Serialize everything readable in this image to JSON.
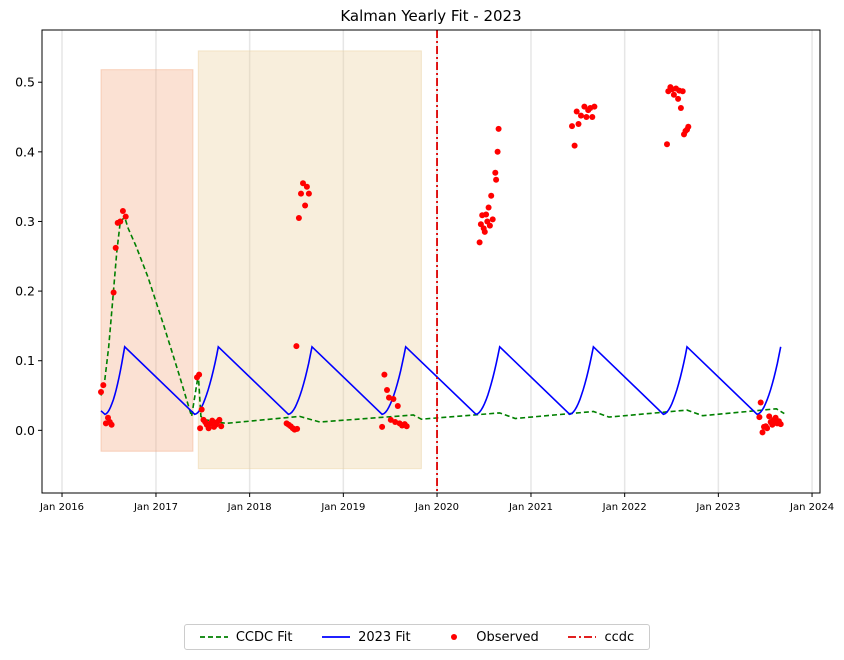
{
  "chart_data": {
    "type": "line",
    "title": "Kalman Yearly Fit - 2023",
    "xlabel": "",
    "ylabel": "",
    "xlim": [
      "2015-10-15",
      "2024-02-01"
    ],
    "ylim": [
      -0.09,
      0.575
    ],
    "x_ticks": [
      {
        "date": "2016-01-01",
        "label": "Jan 2016"
      },
      {
        "date": "2017-01-01",
        "label": "Jan 2017"
      },
      {
        "date": "2018-01-01",
        "label": "Jan 2018"
      },
      {
        "date": "2019-01-01",
        "label": "Jan 2019"
      },
      {
        "date": "2020-01-01",
        "label": "Jan 2020"
      },
      {
        "date": "2021-01-01",
        "label": "Jan 2021"
      },
      {
        "date": "2022-01-01",
        "label": "Jan 2022"
      },
      {
        "date": "2023-01-01",
        "label": "Jan 2023"
      },
      {
        "date": "2024-01-01",
        "label": "Jan 2024"
      }
    ],
    "y_ticks": [
      0.0,
      0.1,
      0.2,
      0.3,
      0.4,
      0.5
    ],
    "grid": "vertical",
    "legend_placement": "bottom-center",
    "shaded_regions": [
      {
        "start": "2016-06-01",
        "end": "2017-05-25",
        "ymin": -0.03,
        "ymax": 0.518,
        "color": "#f4b08c"
      },
      {
        "start": "2017-06-15",
        "end": "2019-11-01",
        "ymin": -0.055,
        "ymax": 0.545,
        "color": "#ecd3a4"
      }
    ],
    "vline": {
      "date": "2020-01-01",
      "name": "ccdc",
      "color": "#dd0000"
    },
    "series": [
      {
        "name": "CCDC Fit",
        "style": "dashed",
        "color": "#008000",
        "points": [
          [
            "2016-06-01",
            0.05
          ],
          [
            "2016-06-15",
            0.07
          ],
          [
            "2016-07-01",
            0.12
          ],
          [
            "2016-07-15",
            0.18
          ],
          [
            "2016-08-01",
            0.255
          ],
          [
            "2016-08-15",
            0.3
          ],
          [
            "2016-09-01",
            0.306
          ],
          [
            "2016-09-15",
            0.29
          ],
          [
            "2016-10-15",
            0.265
          ],
          [
            "2016-12-01",
            0.22
          ],
          [
            "2017-02-01",
            0.15
          ],
          [
            "2017-04-01",
            0.08
          ],
          [
            "2017-05-20",
            0.02
          ],
          [
            "2017-06-15",
            0.08
          ],
          [
            "2017-06-25",
            0.02
          ],
          [
            "2017-07-15",
            0.015
          ],
          [
            "2017-10-01",
            0.01
          ],
          [
            "2018-07-15",
            0.02
          ],
          [
            "2018-10-01",
            0.012
          ],
          [
            "2019-10-01",
            0.022
          ],
          [
            "2019-11-01",
            0.016
          ],
          [
            "2020-09-01",
            0.025
          ],
          [
            "2020-11-01",
            0.017
          ],
          [
            "2021-09-01",
            0.027
          ],
          [
            "2021-11-01",
            0.019
          ],
          [
            "2022-09-01",
            0.029
          ],
          [
            "2022-11-01",
            0.021
          ],
          [
            "2023-08-15",
            0.031
          ],
          [
            "2023-09-15",
            0.024
          ]
        ]
      },
      {
        "name": "2023 Fit",
        "style": "solid",
        "color": "#0000ff",
        "cycles": [
          {
            "start": "2016-06-01",
            "mid": "2016-09-01",
            "rise_from": 0.023,
            "peak": 0.12,
            "descend_to": 0.023
          },
          {
            "start": "2017-06-01",
            "mid": "2017-09-01",
            "rise_from": 0.023,
            "peak": 0.12,
            "descend_to": 0.023
          },
          {
            "start": "2018-06-01",
            "mid": "2018-09-01",
            "rise_from": 0.023,
            "peak": 0.12,
            "descend_to": 0.023
          },
          {
            "start": "2019-06-01",
            "mid": "2019-09-01",
            "rise_from": 0.023,
            "peak": 0.12,
            "descend_to": 0.023
          },
          {
            "start": "2020-06-01",
            "mid": "2020-09-01",
            "rise_from": 0.023,
            "peak": 0.12,
            "descend_to": 0.023
          },
          {
            "start": "2021-06-01",
            "mid": "2021-09-01",
            "rise_from": 0.023,
            "peak": 0.12,
            "descend_to": 0.023
          },
          {
            "start": "2022-06-01",
            "mid": "2022-09-01",
            "rise_from": 0.023,
            "peak": 0.12,
            "descend_to": 0.023
          },
          {
            "start": "2023-06-01",
            "mid": "2023-09-01",
            "rise_from": 0.023,
            "peak": 0.12,
            "descend_to": null
          }
        ],
        "start_value": 0.028
      },
      {
        "name": "Observed",
        "style": "scatter",
        "color": "#ff0000",
        "points": [
          [
            "2016-06-01",
            0.055
          ],
          [
            "2016-06-10",
            0.065
          ],
          [
            "2016-06-20",
            0.01
          ],
          [
            "2016-06-28",
            0.018
          ],
          [
            "2016-07-05",
            0.012
          ],
          [
            "2016-07-12",
            0.008
          ],
          [
            "2016-07-20",
            0.198
          ],
          [
            "2016-07-28",
            0.262
          ],
          [
            "2016-08-05",
            0.298
          ],
          [
            "2016-08-15",
            0.3
          ],
          [
            "2016-08-25",
            0.315
          ],
          [
            "2016-09-05",
            0.307
          ],
          [
            "2017-06-10",
            0.076
          ],
          [
            "2017-06-18",
            0.08
          ],
          [
            "2017-06-22",
            0.003
          ],
          [
            "2017-06-28",
            0.03
          ],
          [
            "2017-07-05",
            0.015
          ],
          [
            "2017-07-12",
            0.012
          ],
          [
            "2017-07-18",
            0.008
          ],
          [
            "2017-07-25",
            0.003
          ],
          [
            "2017-08-01",
            0.01
          ],
          [
            "2017-08-08",
            0.014
          ],
          [
            "2017-08-15",
            0.005
          ],
          [
            "2017-08-22",
            0.008
          ],
          [
            "2017-08-28",
            0.012
          ],
          [
            "2017-09-05",
            0.015
          ],
          [
            "2017-09-12",
            0.006
          ],
          [
            "2018-05-25",
            0.01
          ],
          [
            "2018-06-02",
            0.008
          ],
          [
            "2018-06-10",
            0.006
          ],
          [
            "2018-06-18",
            0.003
          ],
          [
            "2018-06-25",
            0.001
          ],
          [
            "2018-07-02",
            0.121
          ],
          [
            "2018-07-05",
            0.002
          ],
          [
            "2018-07-12",
            0.305
          ],
          [
            "2018-07-20",
            0.34
          ],
          [
            "2018-07-28",
            0.355
          ],
          [
            "2018-08-05",
            0.323
          ],
          [
            "2018-08-12",
            0.35
          ],
          [
            "2018-08-20",
            0.34
          ],
          [
            "2019-06-01",
            0.005
          ],
          [
            "2019-06-10",
            0.08
          ],
          [
            "2019-06-20",
            0.058
          ],
          [
            "2019-06-28",
            0.047
          ],
          [
            "2019-07-05",
            0.015
          ],
          [
            "2019-07-15",
            0.045
          ],
          [
            "2019-07-22",
            0.012
          ],
          [
            "2019-08-01",
            0.035
          ],
          [
            "2019-08-08",
            0.01
          ],
          [
            "2019-08-18",
            0.007
          ],
          [
            "2019-08-28",
            0.009
          ],
          [
            "2019-09-05",
            0.006
          ],
          [
            "2020-06-15",
            0.27
          ],
          [
            "2020-06-20",
            0.296
          ],
          [
            "2020-06-25",
            0.309
          ],
          [
            "2020-07-01",
            0.29
          ],
          [
            "2020-07-05",
            0.285
          ],
          [
            "2020-07-10",
            0.31
          ],
          [
            "2020-07-15",
            0.3
          ],
          [
            "2020-07-20",
            0.32
          ],
          [
            "2020-07-25",
            0.294
          ],
          [
            "2020-07-30",
            0.337
          ],
          [
            "2020-08-05",
            0.303
          ],
          [
            "2020-08-15",
            0.37
          ],
          [
            "2020-08-18",
            0.36
          ],
          [
            "2020-08-24",
            0.4
          ],
          [
            "2020-08-28",
            0.433
          ],
          [
            "2021-06-10",
            0.437
          ],
          [
            "2021-06-20",
            0.409
          ],
          [
            "2021-06-28",
            0.458
          ],
          [
            "2021-07-05",
            0.44
          ],
          [
            "2021-07-15",
            0.452
          ],
          [
            "2021-07-28",
            0.465
          ],
          [
            "2021-08-05",
            0.45
          ],
          [
            "2021-08-12",
            0.46
          ],
          [
            "2021-08-20",
            0.463
          ],
          [
            "2021-08-28",
            0.45
          ],
          [
            "2021-09-05",
            0.465
          ],
          [
            "2022-06-15",
            0.411
          ],
          [
            "2022-06-20",
            0.487
          ],
          [
            "2022-06-28",
            0.493
          ],
          [
            "2022-07-05",
            0.49
          ],
          [
            "2022-07-12",
            0.482
          ],
          [
            "2022-07-20",
            0.491
          ],
          [
            "2022-07-28",
            0.476
          ],
          [
            "2022-08-02",
            0.488
          ],
          [
            "2022-08-08",
            0.463
          ],
          [
            "2022-08-15",
            0.487
          ],
          [
            "2022-08-20",
            0.425
          ],
          [
            "2022-08-26",
            0.43
          ],
          [
            "2022-09-01",
            0.432
          ],
          [
            "2022-09-06",
            0.436
          ],
          [
            "2023-06-10",
            0.019
          ],
          [
            "2023-06-15",
            0.04
          ],
          [
            "2023-06-22",
            -0.003
          ],
          [
            "2023-06-28",
            0.005
          ],
          [
            "2023-07-05",
            0.006
          ],
          [
            "2023-07-10",
            0.003
          ],
          [
            "2023-07-18",
            0.02
          ],
          [
            "2023-07-24",
            0.012
          ],
          [
            "2023-07-30",
            0.008
          ],
          [
            "2023-08-05",
            0.015
          ],
          [
            "2023-08-12",
            0.018
          ],
          [
            "2023-08-18",
            0.01
          ],
          [
            "2023-08-25",
            0.013
          ],
          [
            "2023-09-01",
            0.009
          ]
        ]
      }
    ]
  }
}
